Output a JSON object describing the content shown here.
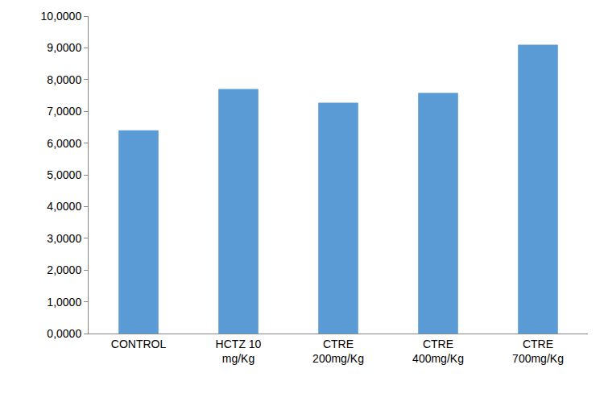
{
  "chart_data": {
    "type": "bar",
    "categories": [
      "CONTROL",
      "HCTZ 10\nmg/Kg",
      "CTRE\n200mg/Kg",
      "CTRE\n400mg/Kg",
      "CTRE\n700mg/Kg"
    ],
    "values": [
      6.4,
      7.7,
      7.27,
      7.58,
      9.1
    ],
    "color": "#5b9bd5",
    "ylim": [
      0,
      10
    ],
    "yticks": [
      {
        "value": 0,
        "label": "0,0000"
      },
      {
        "value": 1,
        "label": "1,0000"
      },
      {
        "value": 2,
        "label": "2,0000"
      },
      {
        "value": 3,
        "label": "3,0000"
      },
      {
        "value": 4,
        "label": "4,0000"
      },
      {
        "value": 5,
        "label": "5,0000"
      },
      {
        "value": 6,
        "label": "6,0000"
      },
      {
        "value": 7,
        "label": "7,0000"
      },
      {
        "value": 8,
        "label": "8,0000"
      },
      {
        "value": 9,
        "label": "9,0000"
      },
      {
        "value": 10,
        "label": "10,0000"
      }
    ],
    "grid": false
  }
}
